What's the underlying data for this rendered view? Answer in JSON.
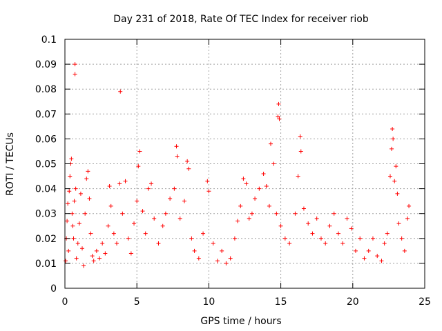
{
  "chart_data": {
    "type": "scatter",
    "title": "Day 231 of 2018, Rate Of TEC Index for receiver riob",
    "xlabel": "GPS time / hours",
    "ylabel": "ROTI / TECUs",
    "xlim": [
      0,
      25
    ],
    "ylim": [
      0,
      0.1
    ],
    "xticks": [
      0,
      5,
      10,
      15,
      20,
      25
    ],
    "xtick_labels": [
      "0",
      "5",
      "10",
      "15",
      "20",
      "25"
    ],
    "yticks": [
      0,
      0.01,
      0.02,
      0.03,
      0.04,
      0.05,
      0.06,
      0.07,
      0.08,
      0.09,
      0.1
    ],
    "ytick_labels": [
      "0",
      "0.01",
      "0.02",
      "0.03",
      "0.04",
      "0.05",
      "0.06",
      "0.07",
      "0.08",
      "0.09",
      "0.1"
    ],
    "grid": true,
    "marker": "+",
    "color": "#ff0000",
    "points": [
      [
        0.05,
        0.011
      ],
      [
        0.1,
        0.02
      ],
      [
        0.15,
        0.027
      ],
      [
        0.2,
        0.034
      ],
      [
        0.25,
        0.015
      ],
      [
        0.3,
        0.039
      ],
      [
        0.35,
        0.045
      ],
      [
        0.4,
        0.05
      ],
      [
        0.45,
        0.052
      ],
      [
        0.5,
        0.03
      ],
      [
        0.55,
        0.025
      ],
      [
        0.6,
        0.02
      ],
      [
        0.65,
        0.035
      ],
      [
        0.7,
        0.09
      ],
      [
        0.7,
        0.086
      ],
      [
        0.75,
        0.04
      ],
      [
        0.8,
        0.012
      ],
      [
        0.9,
        0.018
      ],
      [
        1.0,
        0.026
      ],
      [
        1.1,
        0.038
      ],
      [
        1.2,
        0.016
      ],
      [
        1.3,
        0.009
      ],
      [
        1.4,
        0.03
      ],
      [
        1.5,
        0.044
      ],
      [
        1.6,
        0.047
      ],
      [
        1.7,
        0.036
      ],
      [
        1.8,
        0.022
      ],
      [
        1.9,
        0.013
      ],
      [
        2.0,
        0.011
      ],
      [
        2.2,
        0.015
      ],
      [
        2.4,
        0.012
      ],
      [
        2.6,
        0.018
      ],
      [
        2.8,
        0.014
      ],
      [
        3.0,
        0.025
      ],
      [
        3.1,
        0.041
      ],
      [
        3.2,
        0.033
      ],
      [
        3.4,
        0.022
      ],
      [
        3.6,
        0.018
      ],
      [
        3.8,
        0.042
      ],
      [
        3.85,
        0.079
      ],
      [
        4.0,
        0.03
      ],
      [
        4.2,
        0.043
      ],
      [
        4.4,
        0.02
      ],
      [
        4.6,
        0.014
      ],
      [
        4.8,
        0.026
      ],
      [
        5.0,
        0.035
      ],
      [
        5.1,
        0.049
      ],
      [
        5.2,
        0.055
      ],
      [
        5.4,
        0.031
      ],
      [
        5.6,
        0.022
      ],
      [
        5.8,
        0.04
      ],
      [
        6.0,
        0.042
      ],
      [
        6.2,
        0.028
      ],
      [
        6.5,
        0.018
      ],
      [
        6.8,
        0.025
      ],
      [
        7.0,
        0.03
      ],
      [
        7.3,
        0.036
      ],
      [
        7.6,
        0.04
      ],
      [
        7.75,
        0.057
      ],
      [
        7.8,
        0.053
      ],
      [
        8.0,
        0.028
      ],
      [
        8.3,
        0.035
      ],
      [
        8.5,
        0.051
      ],
      [
        8.6,
        0.048
      ],
      [
        8.8,
        0.02
      ],
      [
        9.0,
        0.015
      ],
      [
        9.3,
        0.012
      ],
      [
        9.6,
        0.022
      ],
      [
        9.9,
        0.043
      ],
      [
        10.0,
        0.039
      ],
      [
        10.3,
        0.018
      ],
      [
        10.6,
        0.011
      ],
      [
        10.9,
        0.015
      ],
      [
        11.2,
        0.01
      ],
      [
        11.5,
        0.012
      ],
      [
        11.8,
        0.02
      ],
      [
        12.0,
        0.027
      ],
      [
        12.2,
        0.033
      ],
      [
        12.4,
        0.044
      ],
      [
        12.6,
        0.042
      ],
      [
        12.8,
        0.028
      ],
      [
        13.0,
        0.03
      ],
      [
        13.2,
        0.036
      ],
      [
        13.5,
        0.04
      ],
      [
        13.8,
        0.046
      ],
      [
        14.0,
        0.041
      ],
      [
        14.2,
        0.033
      ],
      [
        14.3,
        0.058
      ],
      [
        14.5,
        0.05
      ],
      [
        14.7,
        0.03
      ],
      [
        14.8,
        0.069
      ],
      [
        14.85,
        0.074
      ],
      [
        14.9,
        0.068
      ],
      [
        15.0,
        0.025
      ],
      [
        15.3,
        0.02
      ],
      [
        15.6,
        0.018
      ],
      [
        16.0,
        0.03
      ],
      [
        16.2,
        0.045
      ],
      [
        16.35,
        0.061
      ],
      [
        16.4,
        0.055
      ],
      [
        16.6,
        0.032
      ],
      [
        16.9,
        0.026
      ],
      [
        17.2,
        0.022
      ],
      [
        17.5,
        0.028
      ],
      [
        17.8,
        0.02
      ],
      [
        18.1,
        0.018
      ],
      [
        18.4,
        0.025
      ],
      [
        18.7,
        0.03
      ],
      [
        19.0,
        0.022
      ],
      [
        19.3,
        0.018
      ],
      [
        19.6,
        0.028
      ],
      [
        19.9,
        0.024
      ],
      [
        20.2,
        0.015
      ],
      [
        20.5,
        0.02
      ],
      [
        20.8,
        0.012
      ],
      [
        21.1,
        0.015
      ],
      [
        21.4,
        0.02
      ],
      [
        21.7,
        0.013
      ],
      [
        22.0,
        0.011
      ],
      [
        22.2,
        0.018
      ],
      [
        22.4,
        0.022
      ],
      [
        22.6,
        0.045
      ],
      [
        22.7,
        0.056
      ],
      [
        22.75,
        0.064
      ],
      [
        22.8,
        0.06
      ],
      [
        22.9,
        0.043
      ],
      [
        23.0,
        0.049
      ],
      [
        23.1,
        0.038
      ],
      [
        23.2,
        0.026
      ],
      [
        23.4,
        0.02
      ],
      [
        23.6,
        0.015
      ],
      [
        23.8,
        0.028
      ],
      [
        23.9,
        0.033
      ]
    ]
  }
}
